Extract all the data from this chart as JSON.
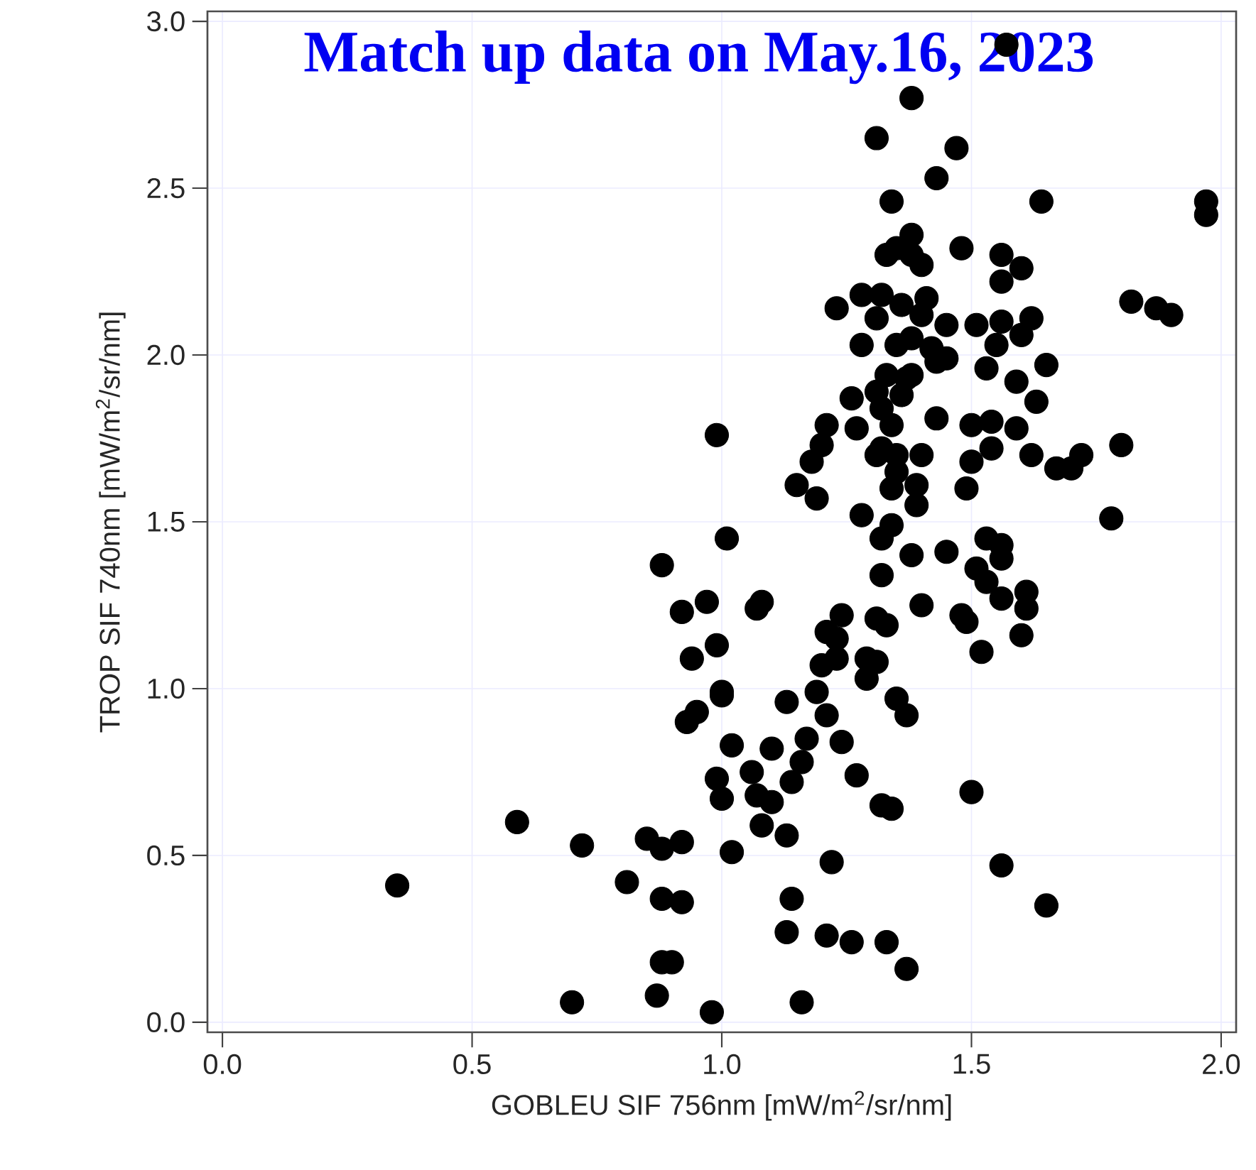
{
  "chart_data": {
    "type": "scatter",
    "title": "Match up data on May.16, 2023",
    "xlabel": "GOBLEU SIF 756nm [mW/m$^{2}$/sr/nm]",
    "ylabel": "TROP SIF 740nm [mW/m$^{2}$/sr/nm]",
    "xlim": [
      -0.03,
      2.03
    ],
    "ylim": [
      -0.03,
      3.03
    ],
    "xticks": [
      {
        "value": 0,
        "label": "0.0"
      },
      0.5,
      {
        "value": 1,
        "label": "1.0"
      },
      1.5,
      {
        "value": 2,
        "label": "2.0"
      }
    ],
    "yticks": [
      {
        "value": 0,
        "label": "0.0"
      },
      0.5,
      {
        "value": 1,
        "label": "1.0"
      },
      1.5,
      {
        "value": 2,
        "label": "2.0"
      },
      2.5,
      {
        "value": 3,
        "label": "3.0"
      }
    ],
    "grid": true,
    "color": "#000000",
    "x": [
      0.35,
      0.59,
      0.72,
      0.85,
      0.88,
      0.92,
      0.81,
      0.88,
      0.92,
      1.14,
      1.13,
      1.21,
      1.26,
      1.33,
      1.37,
      0.88,
      0.9,
      0.7,
      0.87,
      0.98,
      1.16,
      1.22,
      1.5,
      1.32,
      1.34,
      1.56,
      1.65,
      1.01,
      1.08,
      1.13,
      1.02,
      0.88,
      0.92,
      0.97,
      1.08,
      1.07,
      0.99,
      0.94,
      1.0,
      1.0,
      0.95,
      0.93,
      1.02,
      1.1,
      1.17,
      1.24,
      1.16,
      1.06,
      0.99,
      1.0,
      1.14,
      1.07,
      1.1,
      1.27,
      1.19,
      1.13,
      1.21,
      1.35,
      1.37,
      1.2,
      1.23,
      1.21,
      1.23,
      1.24,
      1.29,
      1.31,
      1.29,
      1.31,
      1.33,
      1.4,
      1.48,
      1.49,
      1.52,
      1.6,
      1.61,
      1.61,
      1.56,
      1.53,
      1.51,
      1.56,
      1.53,
      1.56,
      1.45,
      1.38,
      1.32,
      1.32,
      1.57,
      1.38,
      1.31,
      1.47,
      1.43,
      1.34,
      1.64,
      1.97,
      1.97,
      1.38,
      1.35,
      1.33,
      1.38,
      1.4,
      1.48,
      1.56,
      1.6,
      1.56,
      1.82,
      1.87,
      1.9,
      1.23,
      1.28,
      1.32,
      1.36,
      1.41,
      1.4,
      1.31,
      1.45,
      1.51,
      1.56,
      1.62,
      1.6,
      1.28,
      1.35,
      1.38,
      1.42,
      1.43,
      1.45,
      1.55,
      1.53,
      1.59,
      1.65,
      1.63,
      1.8,
      1.78,
      1.67,
      1.7,
      1.72,
      1.62,
      1.54,
      1.54,
      1.5,
      1.59,
      1.5,
      1.49,
      1.43,
      1.4,
      1.35,
      1.39,
      1.39,
      1.34,
      1.35,
      1.28,
      1.34,
      1.26,
      1.27,
      1.21,
      1.2,
      1.18,
      1.15,
      1.19,
      0.99,
      1.31,
      1.33,
      1.37,
      1.32,
      1.34,
      1.32,
      1.31,
      1.36,
      1.38
    ],
    "values": [
      0.41,
      0.6,
      0.53,
      0.55,
      0.52,
      0.54,
      0.42,
      0.37,
      0.36,
      0.37,
      0.27,
      0.26,
      0.24,
      0.24,
      0.16,
      0.18,
      0.18,
      0.06,
      0.08,
      0.03,
      0.06,
      0.48,
      0.69,
      0.65,
      0.64,
      0.47,
      0.35,
      1.45,
      0.59,
      0.56,
      0.51,
      1.37,
      1.23,
      1.26,
      1.26,
      1.24,
      1.13,
      1.09,
      0.99,
      0.98,
      0.93,
      0.9,
      0.83,
      0.82,
      0.85,
      0.84,
      0.78,
      0.75,
      0.73,
      0.67,
      0.72,
      0.68,
      0.66,
      0.74,
      0.99,
      0.96,
      0.92,
      0.97,
      0.92,
      1.07,
      1.09,
      1.17,
      1.15,
      1.22,
      1.09,
      1.08,
      1.03,
      1.21,
      1.19,
      1.25,
      1.22,
      1.2,
      1.11,
      1.16,
      1.29,
      1.24,
      1.27,
      1.32,
      1.36,
      1.39,
      1.45,
      1.43,
      1.41,
      1.4,
      1.34,
      1.45,
      2.93,
      2.77,
      2.65,
      2.62,
      2.53,
      2.46,
      2.46,
      2.46,
      2.42,
      2.36,
      2.32,
      2.3,
      2.3,
      2.27,
      2.32,
      2.3,
      2.26,
      2.22,
      2.16,
      2.14,
      2.12,
      2.14,
      2.18,
      2.18,
      2.15,
      2.17,
      2.12,
      2.11,
      2.09,
      2.09,
      2.1,
      2.11,
      2.06,
      2.03,
      2.03,
      2.05,
      2.02,
      1.98,
      1.99,
      2.03,
      1.96,
      1.92,
      1.97,
      1.86,
      1.73,
      1.51,
      1.66,
      1.66,
      1.7,
      1.7,
      1.72,
      1.8,
      1.79,
      1.78,
      1.68,
      1.6,
      1.81,
      1.7,
      1.7,
      1.61,
      1.55,
      1.6,
      1.65,
      1.52,
      1.49,
      1.87,
      1.78,
      1.79,
      1.73,
      1.68,
      1.61,
      1.57,
      1.76,
      1.89,
      1.94,
      1.93,
      1.84,
      1.79,
      1.72,
      1.7,
      1.88,
      1.94
    ]
  }
}
